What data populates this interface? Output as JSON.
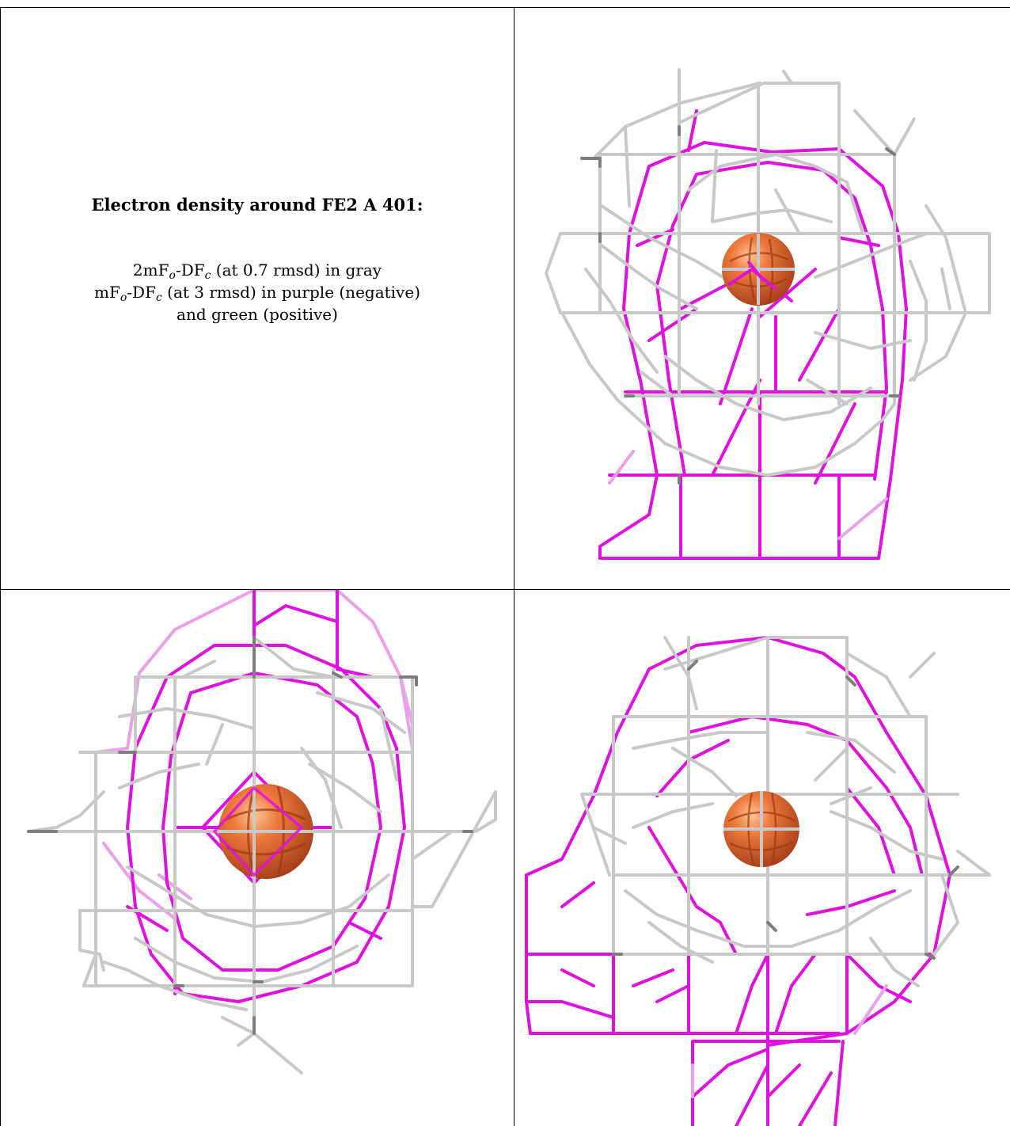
{
  "caption": {
    "title": "Electron density around FE2 A 401:",
    "line1_a": "2mF",
    "line1_sub_o": "o",
    "line1_b": "-DF",
    "line1_sub_c": "c",
    "line1_c": " (at 0.7 rmsd) in gray",
    "line2_a": "mF",
    "line2_sub_o": "o",
    "line2_b": "-DF",
    "line2_sub_c": "c",
    "line2_c": " (at 3 rmsd) in purple (negative)",
    "line3": "and green (positive)"
  },
  "colors": {
    "gray_mesh": "#c8c8c8",
    "gray_dark": "#7d7d7d",
    "purple_mesh": "#e011e0",
    "purple_light": "#eaa0ea",
    "atom": "#e0652a"
  }
}
